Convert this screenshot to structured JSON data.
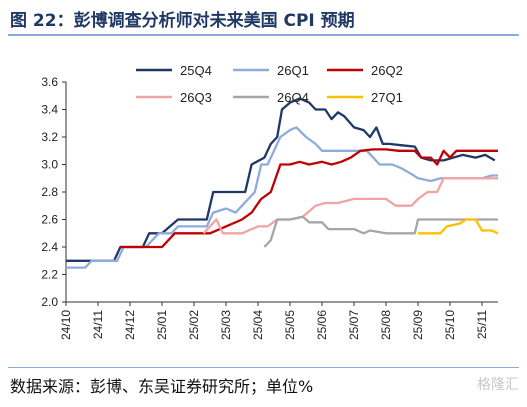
{
  "header": {
    "title": "图 22：彭博调查分析师对未来美国 CPI 预期"
  },
  "footer": {
    "source": "数据来源：彭博、东吴证券研究所；单位%",
    "watermark": "格隆汇"
  },
  "chart_data": {
    "type": "line",
    "title": "",
    "xlabel": "",
    "ylabel": "",
    "ylim": [
      2.0,
      3.6
    ],
    "yticks": [
      "2.0",
      "2.2",
      "2.4",
      "2.6",
      "2.8",
      "3.0",
      "3.2",
      "3.4",
      "3.6"
    ],
    "x_ticks": [
      "24/10",
      "24/11",
      "24/12",
      "25/01",
      "25/02",
      "25/03",
      "25/04",
      "25/05",
      "25/06",
      "25/07",
      "25/08",
      "25/09",
      "25/10",
      "25/11"
    ],
    "x_range": [
      0,
      13.5
    ],
    "legend_position": "top",
    "series": [
      {
        "name": "25Q4",
        "color": "#1f3864",
        "points": [
          [
            0.0,
            2.3
          ],
          [
            0.5,
            2.3
          ],
          [
            1.5,
            2.3
          ],
          [
            1.7,
            2.4
          ],
          [
            2.4,
            2.4
          ],
          [
            2.6,
            2.5
          ],
          [
            3.0,
            2.5
          ],
          [
            3.5,
            2.6
          ],
          [
            4.0,
            2.6
          ],
          [
            4.4,
            2.6
          ],
          [
            4.6,
            2.8
          ],
          [
            5.0,
            2.8
          ],
          [
            5.6,
            2.8
          ],
          [
            5.8,
            3.0
          ],
          [
            6.2,
            3.05
          ],
          [
            6.4,
            3.15
          ],
          [
            6.6,
            3.2
          ],
          [
            6.75,
            3.4
          ],
          [
            7.0,
            3.45
          ],
          [
            7.3,
            3.48
          ],
          [
            7.6,
            3.45
          ],
          [
            7.8,
            3.4
          ],
          [
            8.1,
            3.4
          ],
          [
            8.3,
            3.33
          ],
          [
            8.5,
            3.38
          ],
          [
            8.7,
            3.35
          ],
          [
            9.0,
            3.27
          ],
          [
            9.3,
            3.25
          ],
          [
            9.5,
            3.2
          ],
          [
            9.7,
            3.27
          ],
          [
            9.9,
            3.15
          ],
          [
            10.1,
            3.15
          ],
          [
            10.5,
            3.14
          ],
          [
            10.9,
            3.13
          ],
          [
            11.1,
            3.05
          ],
          [
            11.4,
            3.03
          ],
          [
            11.8,
            3.03
          ],
          [
            12.1,
            3.05
          ],
          [
            12.4,
            3.07
          ],
          [
            12.8,
            3.05
          ],
          [
            13.1,
            3.07
          ],
          [
            13.4,
            3.03
          ]
        ]
      },
      {
        "name": "26Q1",
        "color": "#8faadc",
        "points": [
          [
            0.0,
            2.25
          ],
          [
            0.6,
            2.25
          ],
          [
            0.8,
            2.3
          ],
          [
            1.6,
            2.3
          ],
          [
            1.8,
            2.4
          ],
          [
            2.5,
            2.4
          ],
          [
            2.7,
            2.45
          ],
          [
            2.9,
            2.5
          ],
          [
            3.3,
            2.5
          ],
          [
            3.5,
            2.55
          ],
          [
            4.0,
            2.55
          ],
          [
            4.4,
            2.55
          ],
          [
            4.6,
            2.65
          ],
          [
            5.0,
            2.68
          ],
          [
            5.3,
            2.65
          ],
          [
            5.5,
            2.7
          ],
          [
            5.9,
            2.8
          ],
          [
            6.1,
            3.0
          ],
          [
            6.3,
            3.0
          ],
          [
            6.5,
            3.1
          ],
          [
            6.7,
            3.2
          ],
          [
            7.0,
            3.25
          ],
          [
            7.2,
            3.27
          ],
          [
            7.5,
            3.2
          ],
          [
            7.8,
            3.15
          ],
          [
            8.0,
            3.1
          ],
          [
            8.5,
            3.1
          ],
          [
            9.0,
            3.1
          ],
          [
            9.4,
            3.1
          ],
          [
            9.6,
            3.05
          ],
          [
            9.8,
            3.0
          ],
          [
            10.2,
            3.0
          ],
          [
            10.5,
            2.97
          ],
          [
            10.8,
            2.93
          ],
          [
            11.0,
            2.9
          ],
          [
            11.4,
            2.88
          ],
          [
            11.7,
            2.9
          ],
          [
            12.3,
            2.9
          ],
          [
            13.0,
            2.9
          ],
          [
            13.3,
            2.92
          ],
          [
            13.5,
            2.92
          ]
        ]
      },
      {
        "name": "26Q2",
        "color": "#c00000",
        "points": [
          [
            1.7,
            2.4
          ],
          [
            3.0,
            2.4
          ],
          [
            3.4,
            2.5
          ],
          [
            4.0,
            2.5
          ],
          [
            4.5,
            2.5
          ],
          [
            5.0,
            2.55
          ],
          [
            5.5,
            2.6
          ],
          [
            5.8,
            2.65
          ],
          [
            6.1,
            2.75
          ],
          [
            6.4,
            2.8
          ],
          [
            6.7,
            3.0
          ],
          [
            7.0,
            3.0
          ],
          [
            7.3,
            3.02
          ],
          [
            7.6,
            3.0
          ],
          [
            8.0,
            3.02
          ],
          [
            8.3,
            3.0
          ],
          [
            8.6,
            3.02
          ],
          [
            8.9,
            3.05
          ],
          [
            9.2,
            3.1
          ],
          [
            9.6,
            3.11
          ],
          [
            10.0,
            3.11
          ],
          [
            10.4,
            3.1
          ],
          [
            10.9,
            3.1
          ],
          [
            11.1,
            3.05
          ],
          [
            11.4,
            3.05
          ],
          [
            11.6,
            3.0
          ],
          [
            11.8,
            3.1
          ],
          [
            12.0,
            3.05
          ],
          [
            12.2,
            3.1
          ],
          [
            12.5,
            3.1
          ],
          [
            13.0,
            3.1
          ],
          [
            13.5,
            3.1
          ]
        ]
      },
      {
        "name": "26Q3",
        "color": "#f4a3a3",
        "points": [
          [
            4.3,
            2.5
          ],
          [
            4.7,
            2.6
          ],
          [
            4.9,
            2.5
          ],
          [
            5.5,
            2.5
          ],
          [
            6.0,
            2.55
          ],
          [
            6.3,
            2.55
          ],
          [
            6.6,
            2.6
          ],
          [
            7.0,
            2.6
          ],
          [
            7.4,
            2.62
          ],
          [
            7.8,
            2.7
          ],
          [
            8.1,
            2.72
          ],
          [
            8.5,
            2.72
          ],
          [
            9.0,
            2.75
          ],
          [
            9.5,
            2.75
          ],
          [
            10.0,
            2.75
          ],
          [
            10.3,
            2.7
          ],
          [
            10.8,
            2.7
          ],
          [
            11.0,
            2.75
          ],
          [
            11.3,
            2.8
          ],
          [
            11.6,
            2.8
          ],
          [
            11.8,
            2.9
          ],
          [
            12.3,
            2.9
          ],
          [
            13.0,
            2.9
          ],
          [
            13.5,
            2.9
          ]
        ]
      },
      {
        "name": "26Q4",
        "color": "#a6a6a6",
        "points": [
          [
            6.2,
            2.4
          ],
          [
            6.4,
            2.45
          ],
          [
            6.6,
            2.6
          ],
          [
            7.0,
            2.6
          ],
          [
            7.4,
            2.62
          ],
          [
            7.6,
            2.58
          ],
          [
            8.0,
            2.58
          ],
          [
            8.2,
            2.53
          ],
          [
            8.6,
            2.53
          ],
          [
            9.0,
            2.53
          ],
          [
            9.3,
            2.5
          ],
          [
            9.5,
            2.52
          ],
          [
            10.0,
            2.5
          ],
          [
            10.5,
            2.5
          ],
          [
            10.9,
            2.5
          ],
          [
            11.0,
            2.6
          ],
          [
            11.5,
            2.6
          ],
          [
            12.5,
            2.6
          ],
          [
            13.5,
            2.6
          ]
        ]
      },
      {
        "name": "27Q1",
        "color": "#ffc000",
        "points": [
          [
            11.0,
            2.5
          ],
          [
            11.7,
            2.5
          ],
          [
            11.9,
            2.55
          ],
          [
            12.3,
            2.57
          ],
          [
            12.5,
            2.6
          ],
          [
            12.8,
            2.6
          ],
          [
            13.0,
            2.52
          ],
          [
            13.3,
            2.52
          ],
          [
            13.5,
            2.5
          ]
        ]
      }
    ]
  }
}
